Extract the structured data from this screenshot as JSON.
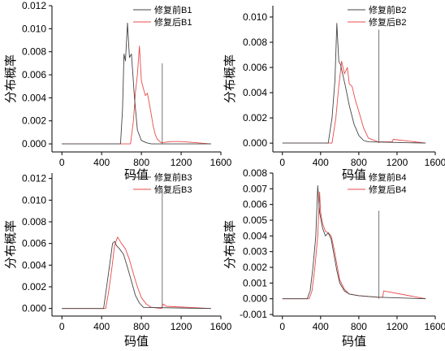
{
  "chart_data": [
    {
      "type": "line",
      "xlabel": "码值",
      "ylabel": "分布概率",
      "xlim": [
        -100,
        1600
      ],
      "ylim": [
        -0.0007,
        0.012
      ],
      "xticks": [
        0,
        400,
        800,
        1200,
        1600
      ],
      "yticks": [
        0.0,
        0.002,
        0.004,
        0.006,
        0.008,
        0.01,
        0.012
      ],
      "ytick_labels": [
        "0.000",
        "0.002",
        "0.004",
        "0.006",
        "0.008",
        "0.010",
        "0.012"
      ],
      "legend_position": "top-right",
      "colors": {
        "before": "#444444",
        "after": "#e84a4a"
      },
      "series": [
        {
          "name": "修复前B1",
          "x": [
            0,
            590,
            610,
            625,
            640,
            660,
            680,
            700,
            730,
            760,
            800,
            850,
            900,
            1000,
            1500
          ],
          "y": [
            0,
            0,
            0.003,
            0.0078,
            0.0072,
            0.0105,
            0.0075,
            0.0078,
            0.004,
            0.0012,
            0.0003,
            0.0001,
            0,
            0,
            0
          ]
        },
        {
          "name": "修复后B1",
          "x": [
            0,
            690,
            720,
            740,
            760,
            780,
            800,
            820,
            840,
            860,
            880,
            900,
            920,
            940,
            960,
            1000,
            1100,
            1200,
            1500
          ],
          "y": [
            0,
            0,
            0.002,
            0.0045,
            0.006,
            0.0085,
            0.0055,
            0.0048,
            0.0042,
            0.0044,
            0.0035,
            0.0025,
            0.0015,
            0.0008,
            0.0004,
            0.0001,
            0.0002,
            0.0002,
            0
          ]
        },
        {
          "name": "spike",
          "x": [
            1010,
            1010
          ],
          "y": [
            0,
            0.007
          ]
        }
      ]
    },
    {
      "type": "line",
      "xlabel": "码值",
      "ylabel": "分布概率",
      "xlim": [
        -100,
        1600
      ],
      "ylim": [
        -0.0007,
        0.0109
      ],
      "xticks": [
        0,
        400,
        800,
        1200,
        1600
      ],
      "yticks": [
        0.0,
        0.002,
        0.004,
        0.006,
        0.008,
        0.01
      ],
      "ytick_labels": [
        "0.000",
        "0.002",
        "0.004",
        "0.006",
        "0.008",
        "0.010"
      ],
      "legend_position": "top-right",
      "colors": {
        "before": "#444444",
        "after": "#e84a4a"
      },
      "series": [
        {
          "name": "修复前B2",
          "x": [
            0,
            480,
            520,
            550,
            570,
            590,
            610,
            630,
            660,
            700,
            750,
            800,
            850,
            900,
            1500
          ],
          "y": [
            0,
            0,
            0.002,
            0.005,
            0.0095,
            0.0065,
            0.0062,
            0.0055,
            0.0045,
            0.003,
            0.0015,
            0.0006,
            0.0002,
            0.0001,
            0
          ]
        },
        {
          "name": "修复后B2",
          "x": [
            0,
            520,
            560,
            590,
            620,
            650,
            680,
            700,
            730,
            760,
            800,
            850,
            900,
            1000,
            1150,
            1160,
            1500
          ],
          "y": [
            0,
            0,
            0.002,
            0.0045,
            0.0065,
            0.0055,
            0.006,
            0.0047,
            0.0045,
            0.0035,
            0.0025,
            0.0012,
            0.0004,
            0.0001,
            0.0001,
            0.0003,
            0
          ]
        },
        {
          "name": "spike",
          "x": [
            1010,
            1010
          ],
          "y": [
            0,
            0.009
          ]
        }
      ]
    },
    {
      "type": "line",
      "xlabel": "码值",
      "ylabel": "分布概率",
      "xlim": [
        -100,
        1600
      ],
      "ylim": [
        -0.0007,
        0.0125
      ],
      "xticks": [
        0,
        400,
        800,
        1200,
        1600
      ],
      "yticks": [
        0.0,
        0.002,
        0.004,
        0.006,
        0.008,
        0.01,
        0.012
      ],
      "ytick_labels": [
        "0.000",
        "0.002",
        "0.004",
        "0.006",
        "0.008",
        "0.010",
        "0.012"
      ],
      "legend_position": "top-right",
      "colors": {
        "before": "#444444",
        "after": "#e84a4a"
      },
      "series": [
        {
          "name": "修复前B3",
          "x": [
            0,
            420,
            450,
            480,
            510,
            530,
            550,
            580,
            620,
            660,
            700,
            740,
            780,
            820,
            1500
          ],
          "y": [
            0,
            0,
            0.002,
            0.004,
            0.006,
            0.0062,
            0.0058,
            0.0055,
            0.005,
            0.0038,
            0.0025,
            0.0012,
            0.0005,
            0.0001,
            0
          ]
        },
        {
          "name": "修复后B3",
          "x": [
            0,
            440,
            470,
            500,
            530,
            560,
            600,
            640,
            680,
            720,
            760,
            800,
            850,
            900,
            1000,
            1020,
            1050,
            1500
          ],
          "y": [
            0,
            0,
            0.0015,
            0.0035,
            0.0058,
            0.0066,
            0.006,
            0.0055,
            0.0045,
            0.0032,
            0.002,
            0.001,
            0.0004,
            0.0001,
            0,
            0.0004,
            0.0002,
            0
          ]
        },
        {
          "name": "spike",
          "x": [
            1010,
            1010
          ],
          "y": [
            0,
            0.011
          ]
        }
      ]
    },
    {
      "type": "line",
      "xlabel": "码值",
      "ylabel": "分布概率",
      "xlim": [
        -100,
        1600
      ],
      "ylim": [
        -0.0011,
        0.008
      ],
      "xticks": [
        0,
        400,
        800,
        1200,
        1600
      ],
      "yticks": [
        -0.001,
        0.0,
        0.001,
        0.002,
        0.003,
        0.004,
        0.005,
        0.006,
        0.007,
        0.008
      ],
      "ytick_labels": [
        "-0.001",
        "0.000",
        "0.001",
        "0.002",
        "0.003",
        "0.004",
        "0.005",
        "0.006",
        "0.007",
        "0.008"
      ],
      "legend_position": "top-right",
      "colors": {
        "before": "#444444",
        "after": "#e84a4a"
      },
      "series": [
        {
          "name": "修复前B4",
          "x": [
            0,
            260,
            290,
            320,
            350,
            370,
            380,
            390,
            420,
            450,
            480,
            510,
            540,
            570,
            600,
            650,
            700,
            800,
            1000,
            1500
          ],
          "y": [
            0,
            0,
            0.0005,
            0.002,
            0.004,
            0.0072,
            0.0062,
            0.0055,
            0.0045,
            0.004,
            0.0042,
            0.0038,
            0.0028,
            0.0018,
            0.001,
            0.0005,
            0.0003,
            0.0002,
            0.0001,
            0
          ]
        },
        {
          "name": "修复后B4",
          "x": [
            0,
            280,
            310,
            340,
            370,
            390,
            400,
            420,
            450,
            480,
            510,
            540,
            570,
            600,
            650,
            700,
            800,
            1000,
            1050,
            1060,
            1500
          ],
          "y": [
            0,
            0,
            0.0005,
            0.002,
            0.004,
            0.0068,
            0.0055,
            0.0048,
            0.0043,
            0.0042,
            0.004,
            0.0032,
            0.0022,
            0.0012,
            0.0006,
            0.0003,
            0.0002,
            0.0001,
            0.0001,
            0.0005,
            0
          ]
        },
        {
          "name": "spike",
          "x": [
            1010,
            1010
          ],
          "y": [
            0,
            0.0056
          ]
        }
      ]
    }
  ]
}
